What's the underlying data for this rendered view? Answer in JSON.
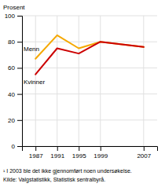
{
  "chart_data": {
    "type": "line",
    "y_label": "Prosent",
    "x": [
      1987,
      1991,
      1995,
      1999,
      2007
    ],
    "series": [
      {
        "name": "Menn",
        "color": "#f5a800",
        "values": [
          67,
          85,
          75,
          80,
          76
        ]
      },
      {
        "name": "Kvinner",
        "color": "#cc0000",
        "values": [
          55,
          75,
          71,
          80,
          76
        ]
      }
    ],
    "xlim": [
      1984.5,
      2009.5
    ],
    "ylim": [
      0,
      100
    ],
    "xticks": [
      1987,
      1991,
      1995,
      1999,
      2007
    ],
    "yticks": [
      0,
      20,
      40,
      60,
      80,
      100
    ],
    "grid": true,
    "footnote": "¹ I 2003 ble det ikke gjennomført noen undersøkelse.",
    "source": "Kilde: Valgstatistikk, Statistisk sentralbyrå."
  }
}
